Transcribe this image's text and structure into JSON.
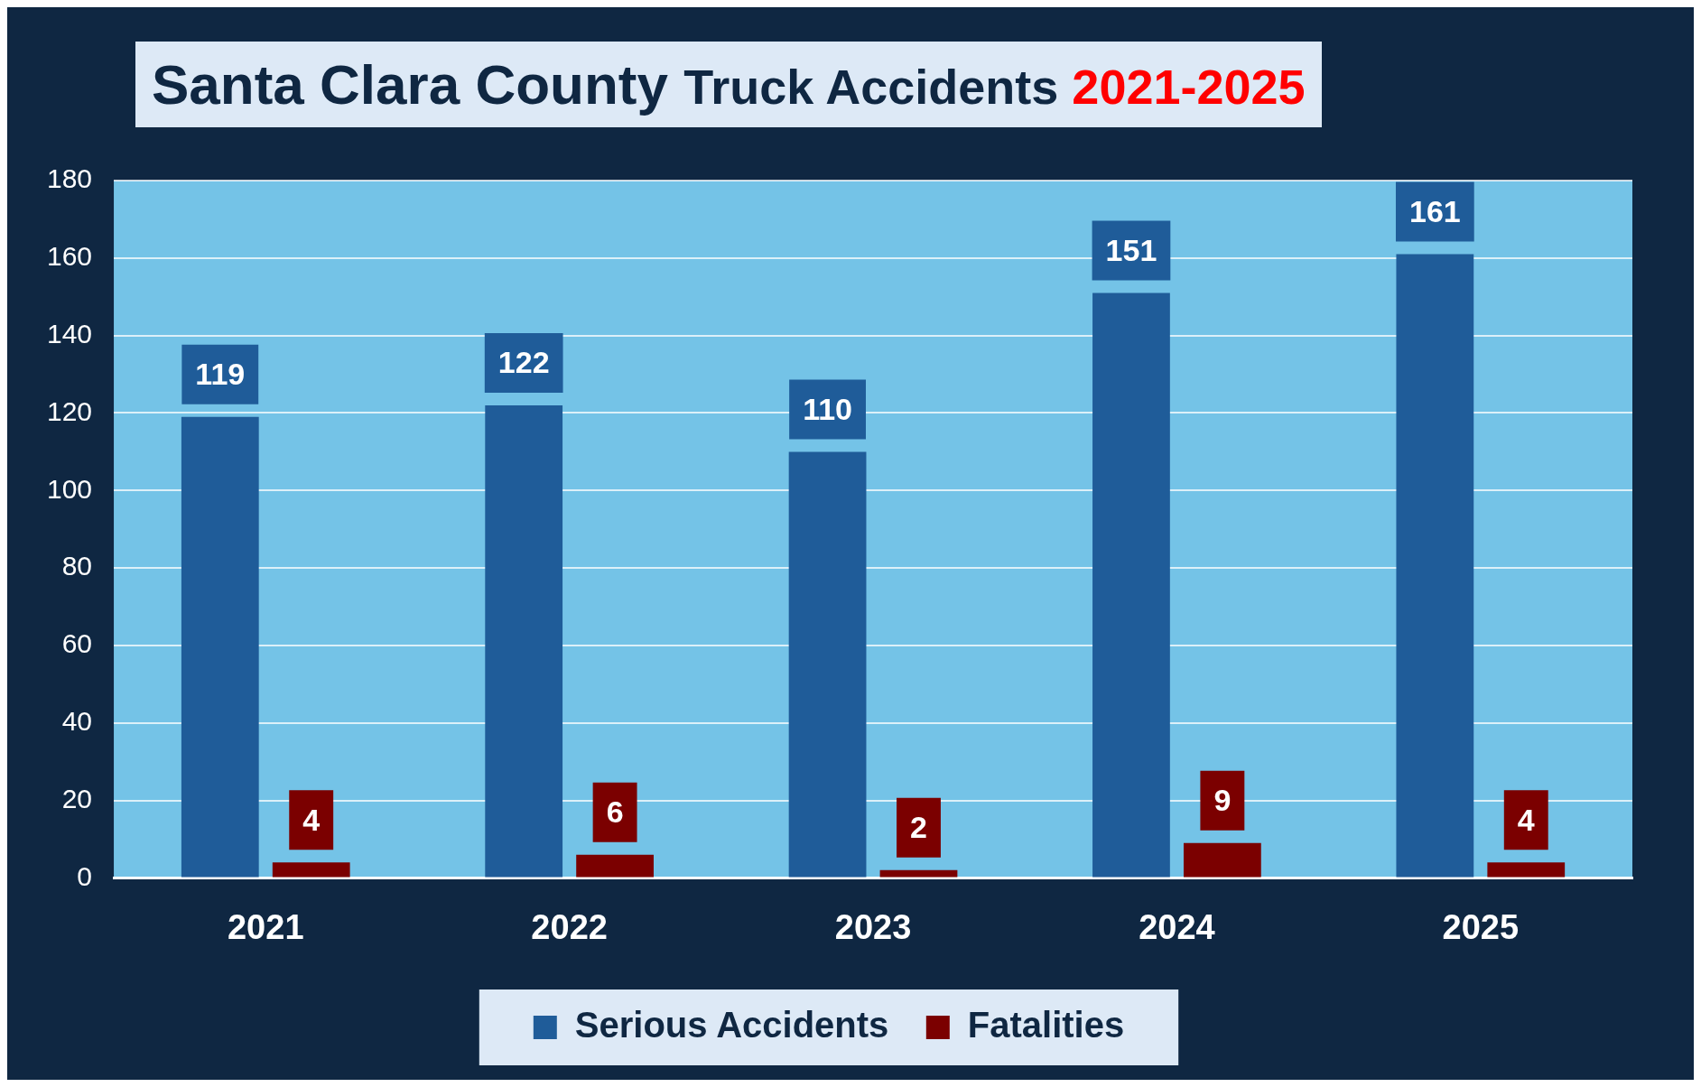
{
  "chart_data": {
    "type": "bar",
    "title": "Santa Clara County Truck Accidents 2021-2025",
    "categories": [
      "2021",
      "2022",
      "2023",
      "2024",
      "2025"
    ],
    "series": [
      {
        "name": "Serious Accidents",
        "color": "#1f5c99",
        "values": [
          119,
          122,
          110,
          151,
          161
        ]
      },
      {
        "name": "Fatalities",
        "color": "#7b0000",
        "values": [
          4,
          6,
          2,
          9,
          4
        ]
      }
    ],
    "ylim": [
      0,
      180
    ],
    "yticks": [
      0,
      20,
      40,
      60,
      80,
      100,
      120,
      140,
      160,
      180
    ],
    "grid": "y",
    "legend": "bottom",
    "data_labels": true
  }
}
